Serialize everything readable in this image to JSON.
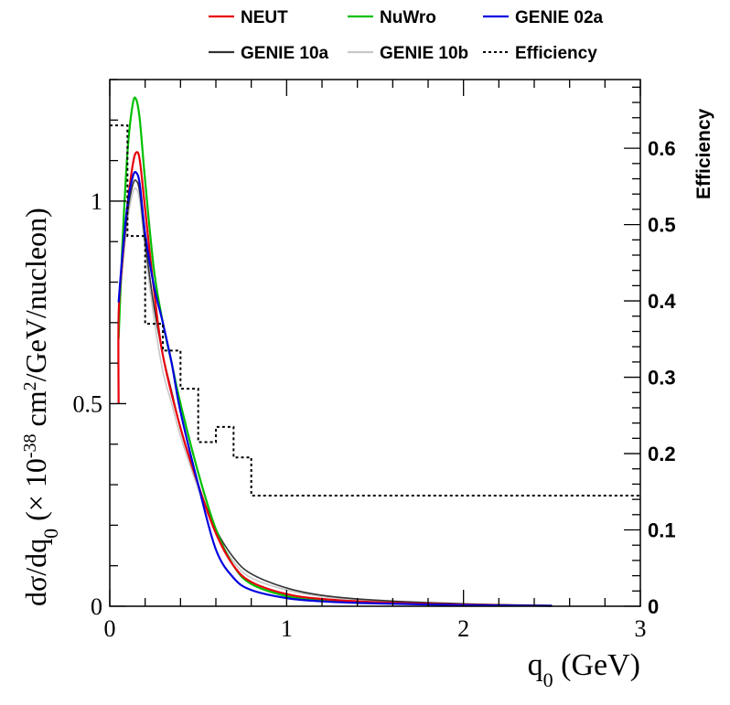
{
  "chart_data": {
    "type": "line",
    "xlabel": "q",
    "xlabel_sub": "0",
    "xlabel_unit": " (GeV)",
    "ylabel_parts": {
      "prefix": "dσ/dq",
      "sub0": "0",
      "mid": " (× 10",
      "sup_exp": "-38",
      "mid2": " cm",
      "sup2": "2",
      "suffix": "/GeV/nucleon)"
    },
    "y2label": "Efficiency",
    "xlim": [
      0,
      3
    ],
    "ylim": [
      0,
      1.3
    ],
    "y2lim": [
      0,
      0.69
    ],
    "x_ticks": [
      {
        "value": 0,
        "label": "0"
      },
      {
        "value": 1,
        "label": "1"
      },
      {
        "value": 2,
        "label": "2"
      },
      {
        "value": 3,
        "label": "3"
      }
    ],
    "y_ticks": [
      {
        "value": 0,
        "label": "0"
      },
      {
        "value": 0.5,
        "label": "0.5"
      },
      {
        "value": 1,
        "label": "1"
      }
    ],
    "y2_ticks": [
      {
        "value": 0,
        "label": "0"
      },
      {
        "value": 0.1,
        "label": "0.1"
      },
      {
        "value": 0.2,
        "label": "0.2"
      },
      {
        "value": 0.3,
        "label": "0.3"
      },
      {
        "value": 0.4,
        "label": "0.4"
      },
      {
        "value": 0.5,
        "label": "0.5"
      },
      {
        "value": 0.6,
        "label": "0.6"
      }
    ],
    "legend": {
      "placement": "top",
      "entries": [
        {
          "label": "NEUT",
          "series": "NEUT"
        },
        {
          "label": "NuWro",
          "series": "NuWro"
        },
        {
          "label": "GENIE 02a",
          "series": "GENIE 02a"
        },
        {
          "label": "GENIE 10a",
          "series": "GENIE 10a"
        },
        {
          "label": "GENIE 10b",
          "series": "GENIE 10b"
        },
        {
          "label": "Efficiency",
          "series": "Efficiency"
        }
      ]
    },
    "series": [
      {
        "name": "NEUT",
        "color": "#e8000b",
        "style": "solid",
        "x": [
          0.05,
          0.05,
          0.07,
          0.1,
          0.13,
          0.15,
          0.17,
          0.2,
          0.25,
          0.3,
          0.4,
          0.5,
          0.6,
          0.7,
          0.8,
          1.0,
          1.2,
          1.5,
          2.0,
          2.5
        ],
        "y": [
          0.5,
          0.72,
          0.85,
          0.99,
          1.09,
          1.12,
          1.1,
          0.98,
          0.78,
          0.62,
          0.44,
          0.3,
          0.18,
          0.1,
          0.06,
          0.03,
          0.018,
          0.01,
          0.004,
          0.001
        ]
      },
      {
        "name": "NuWro",
        "color": "#00c000",
        "style": "solid",
        "x": [
          0.05,
          0.07,
          0.1,
          0.13,
          0.15,
          0.17,
          0.2,
          0.25,
          0.3,
          0.35,
          0.4,
          0.5,
          0.6,
          0.7,
          0.8,
          1.0,
          1.2,
          1.5,
          2.0,
          2.5
        ],
        "y": [
          0.66,
          0.88,
          1.12,
          1.24,
          1.25,
          1.2,
          1.05,
          0.83,
          0.7,
          0.6,
          0.5,
          0.33,
          0.19,
          0.1,
          0.055,
          0.025,
          0.014,
          0.008,
          0.003,
          0.001
        ]
      },
      {
        "name": "GENIE 02a",
        "color": "#0000e0",
        "style": "solid",
        "x": [
          0.05,
          0.07,
          0.1,
          0.13,
          0.15,
          0.17,
          0.2,
          0.25,
          0.3,
          0.35,
          0.4,
          0.5,
          0.6,
          0.7,
          0.8,
          1.0,
          1.2,
          1.5,
          2.0,
          2.5
        ],
        "y": [
          0.75,
          0.86,
          0.99,
          1.06,
          1.07,
          1.04,
          0.92,
          0.79,
          0.7,
          0.6,
          0.48,
          0.3,
          0.14,
          0.07,
          0.04,
          0.02,
          0.012,
          0.007,
          0.003,
          0.001
        ]
      },
      {
        "name": "GENIE 10a",
        "color": "#333333",
        "style": "solid",
        "x": [
          0.05,
          0.07,
          0.1,
          0.13,
          0.15,
          0.17,
          0.2,
          0.25,
          0.3,
          0.35,
          0.4,
          0.5,
          0.6,
          0.7,
          0.8,
          1.0,
          1.2,
          1.5,
          2.0,
          2.5
        ],
        "y": [
          0.72,
          0.84,
          0.97,
          1.04,
          1.05,
          1.02,
          0.9,
          0.74,
          0.62,
          0.53,
          0.44,
          0.3,
          0.19,
          0.12,
          0.08,
          0.045,
          0.027,
          0.015,
          0.006,
          0.002
        ]
      },
      {
        "name": "GENIE 10b",
        "color": "#c8c8c8",
        "style": "solid",
        "x": [
          0.05,
          0.07,
          0.1,
          0.13,
          0.15,
          0.17,
          0.2,
          0.25,
          0.3,
          0.35,
          0.4,
          0.5,
          0.6,
          0.7,
          0.8,
          1.0,
          1.2,
          1.5,
          2.0,
          2.5
        ],
        "y": [
          0.7,
          0.82,
          0.95,
          1.02,
          1.03,
          1.0,
          0.88,
          0.71,
          0.58,
          0.5,
          0.42,
          0.29,
          0.18,
          0.11,
          0.07,
          0.04,
          0.024,
          0.013,
          0.005,
          0.002
        ]
      },
      {
        "name": "Efficiency",
        "color": "#000000",
        "style": "dotted",
        "axis": "y2",
        "type": "step",
        "bins": [
          0.0,
          0.1,
          0.2,
          0.3,
          0.4,
          0.5,
          0.6,
          0.7,
          0.8,
          3.0
        ],
        "values": [
          0.63,
          0.485,
          0.37,
          0.335,
          0.285,
          0.215,
          0.235,
          0.195,
          0.145
        ]
      }
    ]
  }
}
